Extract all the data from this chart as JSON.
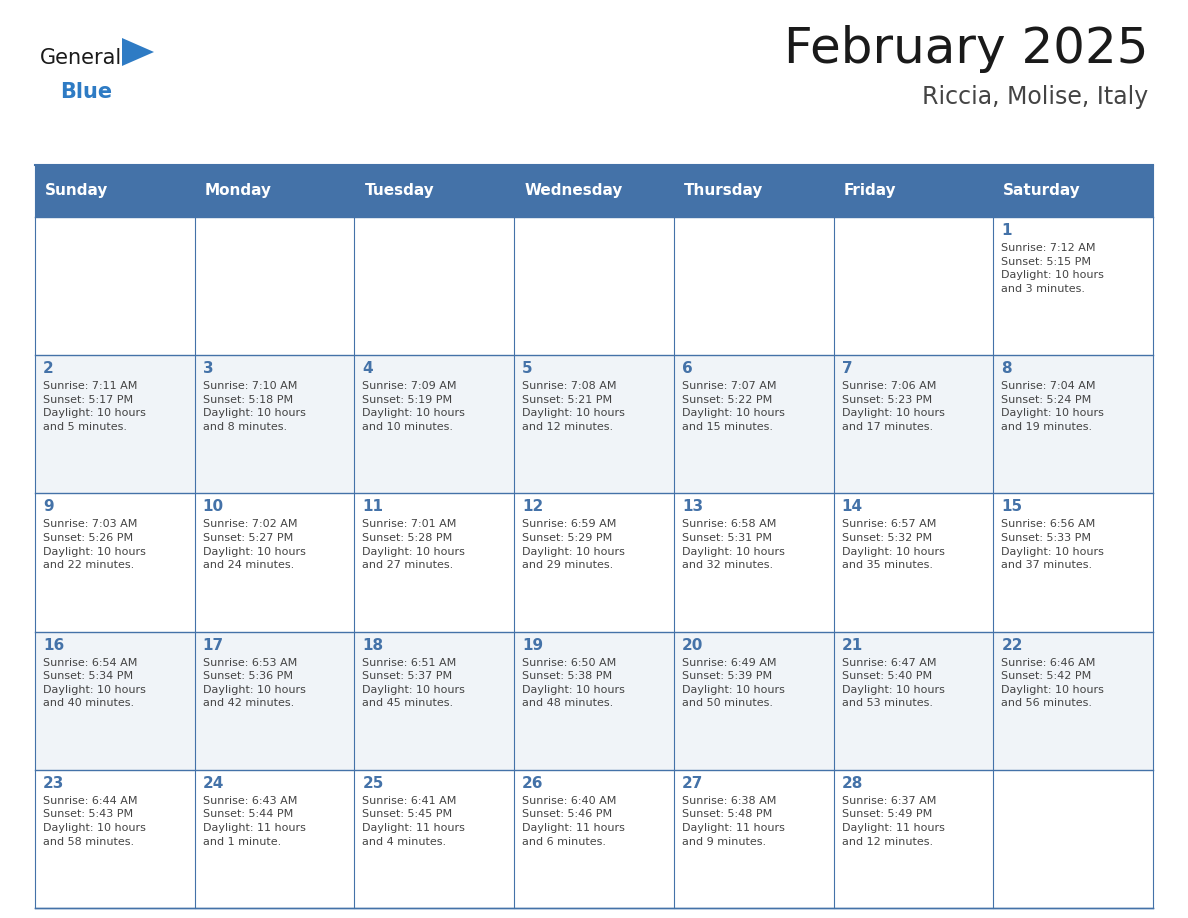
{
  "title": "February 2025",
  "subtitle": "Riccia, Molise, Italy",
  "days_of_week": [
    "Sunday",
    "Monday",
    "Tuesday",
    "Wednesday",
    "Thursday",
    "Friday",
    "Saturday"
  ],
  "header_bg": "#4472A8",
  "header_text": "#FFFFFF",
  "row_bg": [
    "#FFFFFF",
    "#F0F4F8",
    "#FFFFFF",
    "#F0F4F8",
    "#FFFFFF"
  ],
  "border_color": "#4472A8",
  "day_num_color": "#4472A8",
  "text_color": "#444444",
  "logo_general_color": "#1a1a1a",
  "logo_blue_color": "#2E7BC4",
  "calendar_data": [
    [
      {
        "day": null,
        "info": ""
      },
      {
        "day": null,
        "info": ""
      },
      {
        "day": null,
        "info": ""
      },
      {
        "day": null,
        "info": ""
      },
      {
        "day": null,
        "info": ""
      },
      {
        "day": null,
        "info": ""
      },
      {
        "day": 1,
        "info": "Sunrise: 7:12 AM\nSunset: 5:15 PM\nDaylight: 10 hours\nand 3 minutes."
      }
    ],
    [
      {
        "day": 2,
        "info": "Sunrise: 7:11 AM\nSunset: 5:17 PM\nDaylight: 10 hours\nand 5 minutes."
      },
      {
        "day": 3,
        "info": "Sunrise: 7:10 AM\nSunset: 5:18 PM\nDaylight: 10 hours\nand 8 minutes."
      },
      {
        "day": 4,
        "info": "Sunrise: 7:09 AM\nSunset: 5:19 PM\nDaylight: 10 hours\nand 10 minutes."
      },
      {
        "day": 5,
        "info": "Sunrise: 7:08 AM\nSunset: 5:21 PM\nDaylight: 10 hours\nand 12 minutes."
      },
      {
        "day": 6,
        "info": "Sunrise: 7:07 AM\nSunset: 5:22 PM\nDaylight: 10 hours\nand 15 minutes."
      },
      {
        "day": 7,
        "info": "Sunrise: 7:06 AM\nSunset: 5:23 PM\nDaylight: 10 hours\nand 17 minutes."
      },
      {
        "day": 8,
        "info": "Sunrise: 7:04 AM\nSunset: 5:24 PM\nDaylight: 10 hours\nand 19 minutes."
      }
    ],
    [
      {
        "day": 9,
        "info": "Sunrise: 7:03 AM\nSunset: 5:26 PM\nDaylight: 10 hours\nand 22 minutes."
      },
      {
        "day": 10,
        "info": "Sunrise: 7:02 AM\nSunset: 5:27 PM\nDaylight: 10 hours\nand 24 minutes."
      },
      {
        "day": 11,
        "info": "Sunrise: 7:01 AM\nSunset: 5:28 PM\nDaylight: 10 hours\nand 27 minutes."
      },
      {
        "day": 12,
        "info": "Sunrise: 6:59 AM\nSunset: 5:29 PM\nDaylight: 10 hours\nand 29 minutes."
      },
      {
        "day": 13,
        "info": "Sunrise: 6:58 AM\nSunset: 5:31 PM\nDaylight: 10 hours\nand 32 minutes."
      },
      {
        "day": 14,
        "info": "Sunrise: 6:57 AM\nSunset: 5:32 PM\nDaylight: 10 hours\nand 35 minutes."
      },
      {
        "day": 15,
        "info": "Sunrise: 6:56 AM\nSunset: 5:33 PM\nDaylight: 10 hours\nand 37 minutes."
      }
    ],
    [
      {
        "day": 16,
        "info": "Sunrise: 6:54 AM\nSunset: 5:34 PM\nDaylight: 10 hours\nand 40 minutes."
      },
      {
        "day": 17,
        "info": "Sunrise: 6:53 AM\nSunset: 5:36 PM\nDaylight: 10 hours\nand 42 minutes."
      },
      {
        "day": 18,
        "info": "Sunrise: 6:51 AM\nSunset: 5:37 PM\nDaylight: 10 hours\nand 45 minutes."
      },
      {
        "day": 19,
        "info": "Sunrise: 6:50 AM\nSunset: 5:38 PM\nDaylight: 10 hours\nand 48 minutes."
      },
      {
        "day": 20,
        "info": "Sunrise: 6:49 AM\nSunset: 5:39 PM\nDaylight: 10 hours\nand 50 minutes."
      },
      {
        "day": 21,
        "info": "Sunrise: 6:47 AM\nSunset: 5:40 PM\nDaylight: 10 hours\nand 53 minutes."
      },
      {
        "day": 22,
        "info": "Sunrise: 6:46 AM\nSunset: 5:42 PM\nDaylight: 10 hours\nand 56 minutes."
      }
    ],
    [
      {
        "day": 23,
        "info": "Sunrise: 6:44 AM\nSunset: 5:43 PM\nDaylight: 10 hours\nand 58 minutes."
      },
      {
        "day": 24,
        "info": "Sunrise: 6:43 AM\nSunset: 5:44 PM\nDaylight: 11 hours\nand 1 minute."
      },
      {
        "day": 25,
        "info": "Sunrise: 6:41 AM\nSunset: 5:45 PM\nDaylight: 11 hours\nand 4 minutes."
      },
      {
        "day": 26,
        "info": "Sunrise: 6:40 AM\nSunset: 5:46 PM\nDaylight: 11 hours\nand 6 minutes."
      },
      {
        "day": 27,
        "info": "Sunrise: 6:38 AM\nSunset: 5:48 PM\nDaylight: 11 hours\nand 9 minutes."
      },
      {
        "day": 28,
        "info": "Sunrise: 6:37 AM\nSunset: 5:49 PM\nDaylight: 11 hours\nand 12 minutes."
      },
      {
        "day": null,
        "info": ""
      }
    ]
  ]
}
